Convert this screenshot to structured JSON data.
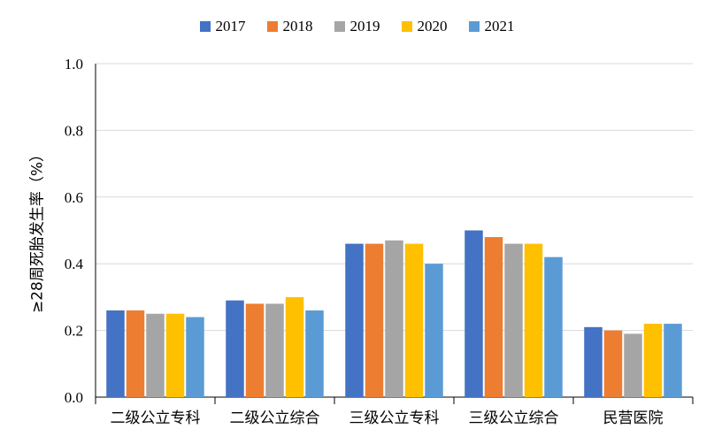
{
  "chart_data": {
    "type": "bar",
    "title": "",
    "xlabel": "",
    "ylabel": "≥28周死胎发生率（%）",
    "ylim": [
      0,
      1.0
    ],
    "yticks": [
      "0.0",
      "0.2",
      "0.4",
      "0.6",
      "0.8",
      "1.0"
    ],
    "grid": true,
    "legend_position": "top",
    "categories": [
      "二级公立专科",
      "二级公立综合",
      "三级公立专科",
      "三级公立综合",
      "民营医院"
    ],
    "series": [
      {
        "name": "2017",
        "color": "#4472C4",
        "values": [
          0.26,
          0.29,
          0.46,
          0.5,
          0.21
        ]
      },
      {
        "name": "2018",
        "color": "#ED7D31",
        "values": [
          0.26,
          0.28,
          0.46,
          0.48,
          0.2
        ]
      },
      {
        "name": "2019",
        "color": "#A5A5A5",
        "values": [
          0.25,
          0.28,
          0.47,
          0.46,
          0.19
        ]
      },
      {
        "name": "2020",
        "color": "#FFC000",
        "values": [
          0.25,
          0.3,
          0.46,
          0.46,
          0.22
        ]
      },
      {
        "name": "2021",
        "color": "#5B9BD5",
        "values": [
          0.24,
          0.26,
          0.4,
          0.42,
          0.22
        ]
      }
    ]
  }
}
